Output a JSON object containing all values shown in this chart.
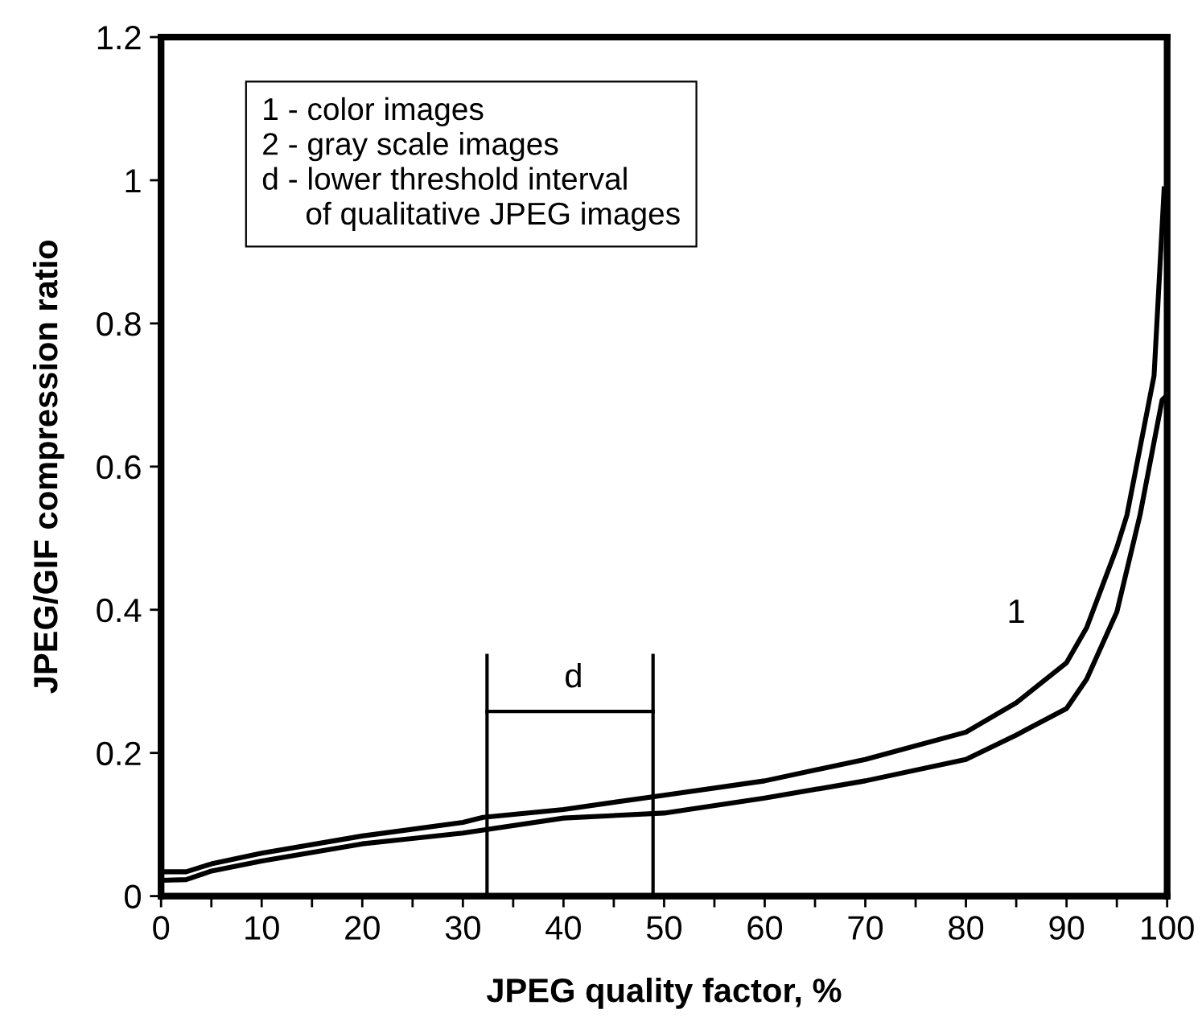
{
  "chart_data": {
    "type": "line",
    "xlabel": "JPEG quality factor, %",
    "ylabel": "JPEG/GIF compression ratio",
    "series": [
      {
        "color": "#000000",
        "x": [
          0,
          2.5,
          5,
          10,
          20,
          30,
          32,
          40,
          50,
          60,
          70,
          80,
          85,
          90,
          92,
          95,
          96,
          98.7,
          99.7
        ],
        "values": [
          0.034,
          0.034,
          0.045,
          0.06,
          0.084,
          0.103,
          0.11,
          0.121,
          0.141,
          0.161,
          0.191,
          0.229,
          0.27,
          0.326,
          0.375,
          0.487,
          0.532,
          0.727,
          0.988
        ]
      },
      {
        "color": "#000000",
        "x": [
          0,
          2.5,
          5,
          10,
          20,
          30,
          40,
          50,
          60,
          70,
          80,
          85,
          90,
          92,
          95,
          97.3,
          99.5,
          100
        ],
        "values": [
          0.022,
          0.023,
          0.035,
          0.049,
          0.073,
          0.088,
          0.109,
          0.116,
          0.137,
          0.161,
          0.191,
          0.225,
          0.262,
          0.303,
          0.397,
          0.532,
          0.693,
          0.7
        ]
      }
    ],
    "xlim": [
      0,
      100
    ],
    "ylim": [
      0,
      1.2
    ],
    "xticks": [
      0,
      {
        "value": 5,
        "label": null
      },
      10,
      {
        "value": 15,
        "label": null
      },
      20,
      {
        "value": 25,
        "label": null
      },
      30,
      {
        "value": 35,
        "label": null
      },
      40,
      {
        "value": 45,
        "label": null
      },
      50,
      {
        "value": 55,
        "label": null
      },
      60,
      {
        "value": 65,
        "label": null
      },
      70,
      {
        "value": 75,
        "label": null
      },
      80,
      {
        "value": 85,
        "label": null
      },
      90,
      {
        "value": 95,
        "label": null
      },
      100
    ],
    "yticks": [
      0,
      0.2,
      0.4,
      0.6,
      0.8,
      1,
      1.2
    ],
    "grid": false,
    "legend": false,
    "marker": "none",
    "line_style": "solid",
    "ref_lines": [
      {
        "axis": "x",
        "value": 32.4,
        "color": "#000000"
      },
      {
        "axis": "x",
        "value": 48.9,
        "color": "#000000"
      }
    ],
    "annotations": [
      "1",
      "d",
      "1 - color images\n2 - gray scale images\nd - lower threshold interval\n     of qualitative JPEG images"
    ]
  }
}
